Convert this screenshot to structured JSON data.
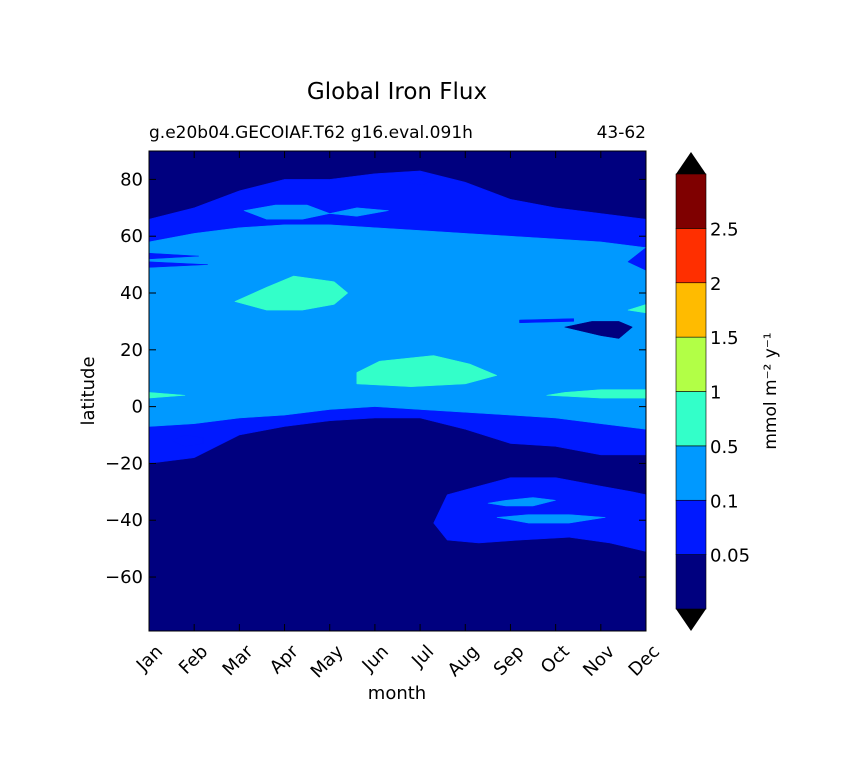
{
  "chart_data": {
    "type": "heatmap",
    "title": "Global Iron Flux",
    "subtitle_left": "g.e20b04.GECOIAF.T62 g16.eval.091h",
    "subtitle_right": "43-62",
    "xlabel": "month",
    "ylabel": "latitude",
    "x_ticks": [
      "Jan",
      "Feb",
      "Mar",
      "Apr",
      "May",
      "Jun",
      "Jul",
      "Aug",
      "Sep",
      "Oct",
      "Nov",
      "Dec"
    ],
    "xlim": [
      0,
      11
    ],
    "ylim": [
      -79,
      90
    ],
    "y_ticks": [
      80,
      60,
      40,
      20,
      0,
      -20,
      -40,
      -60
    ],
    "y_tick_labels": [
      "80",
      "60",
      "40",
      "20",
      "0",
      "−20",
      "−40",
      "−60"
    ],
    "colorbar": {
      "label": "mmol m⁻² y⁻¹",
      "levels": [
        0.05,
        0.1,
        0.5,
        1,
        1.5,
        2,
        2.5
      ],
      "level_labels": [
        "0.05",
        "0.1",
        "0.5",
        "1",
        "1.5",
        "2",
        "2.5"
      ],
      "colors": [
        "#00007f",
        "#0019ff",
        "#0099ff",
        "#33ffc9",
        "#b2ff46",
        "#ffbb00",
        "#ff2f00",
        "#7f0000"
      ],
      "extend": "both",
      "extend_colors": [
        "#000000",
        "#000000"
      ]
    },
    "regions": [
      {
        "level": "0.05-0.1",
        "color": "#0019ff",
        "boundary": [
          [
            0,
            -20
          ],
          [
            1,
            -18
          ],
          [
            2,
            -10
          ],
          [
            3,
            -7
          ],
          [
            4,
            -5
          ],
          [
            5,
            -4
          ],
          [
            6,
            -4
          ],
          [
            7,
            -8
          ],
          [
            8,
            -13
          ],
          [
            9,
            -14
          ],
          [
            10,
            -17
          ],
          [
            11,
            -17
          ],
          [
            11,
            66
          ],
          [
            10,
            68
          ],
          [
            9,
            70
          ],
          [
            8,
            73
          ],
          [
            7,
            79
          ],
          [
            6,
            83
          ],
          [
            5,
            82
          ],
          [
            4,
            80
          ],
          [
            3,
            80
          ],
          [
            2,
            76
          ],
          [
            1,
            70
          ],
          [
            0,
            66
          ]
        ]
      },
      {
        "level": "0.1-0.5",
        "color": "#0099ff",
        "boundary": [
          [
            0,
            -7
          ],
          [
            1,
            -6
          ],
          [
            2,
            -4
          ],
          [
            3,
            -3
          ],
          [
            4,
            -1
          ],
          [
            5,
            0
          ],
          [
            6,
            -1
          ],
          [
            7,
            -2
          ],
          [
            8,
            -3
          ],
          [
            9,
            -4
          ],
          [
            10,
            -6
          ],
          [
            11,
            -8
          ],
          [
            11,
            56
          ],
          [
            10,
            58
          ],
          [
            9,
            59
          ],
          [
            8,
            60
          ],
          [
            7,
            61
          ],
          [
            6,
            62
          ],
          [
            5,
            63
          ],
          [
            4,
            64
          ],
          [
            3,
            64
          ],
          [
            2,
            63
          ],
          [
            1,
            61
          ],
          [
            0,
            58
          ]
        ]
      },
      {
        "level": "0.5-1",
        "color": "#33ffc9",
        "label": "Mar-May 40N",
        "boundary": [
          [
            1.9,
            37
          ],
          [
            2.6,
            34
          ],
          [
            3.4,
            34
          ],
          [
            4.1,
            36
          ],
          [
            4.4,
            40
          ],
          [
            4.1,
            44
          ],
          [
            3.2,
            46
          ],
          [
            2.6,
            42
          ]
        ]
      },
      {
        "level": "0.5-1",
        "color": "#33ffc9",
        "label": "Jun-Aug equatorial",
        "boundary": [
          [
            4.6,
            8
          ],
          [
            5.8,
            7
          ],
          [
            7.0,
            8
          ],
          [
            7.7,
            11
          ],
          [
            7.1,
            15
          ],
          [
            6.3,
            18
          ],
          [
            5.1,
            16
          ],
          [
            4.6,
            12
          ]
        ]
      },
      {
        "level": "0.5-1",
        "color": "#33ffc9",
        "label": "Oct-Dec 5N",
        "boundary": [
          [
            8.8,
            4
          ],
          [
            10.0,
            3
          ],
          [
            11,
            3
          ],
          [
            11,
            6
          ],
          [
            10.0,
            6
          ],
          [
            9.2,
            5
          ]
        ]
      },
      {
        "level": "0.5-1",
        "color": "#33ffc9",
        "label": "Jan 4N",
        "boundary": [
          [
            0,
            3
          ],
          [
            0.8,
            4
          ],
          [
            0,
            5
          ]
        ]
      },
      {
        "level": "0.1-0.5",
        "color": "#0099ff",
        "label": "Apr-May 70N",
        "boundary": [
          [
            2.1,
            69
          ],
          [
            2.8,
            71
          ],
          [
            3.5,
            71
          ],
          [
            4.0,
            68
          ],
          [
            3.4,
            66
          ],
          [
            2.6,
            66
          ]
        ]
      },
      {
        "level": "0.1-0.5",
        "color": "#0099ff",
        "label": "Jun 69N",
        "boundary": [
          [
            4.0,
            68
          ],
          [
            4.6,
            70
          ],
          [
            5.3,
            69
          ],
          [
            4.6,
            67
          ]
        ]
      },
      {
        "level": "0.05-0.1",
        "color": "#0019ff",
        "label": "Sep-Dec -40 band",
        "boundary": [
          [
            6.3,
            -41
          ],
          [
            6.6,
            -31
          ],
          [
            7.3,
            -28
          ],
          [
            8.0,
            -25
          ],
          [
            9.0,
            -25
          ],
          [
            10.0,
            -28
          ],
          [
            10.7,
            -30
          ],
          [
            11,
            -31
          ],
          [
            11,
            -51
          ],
          [
            10.2,
            -48
          ],
          [
            9.3,
            -46
          ],
          [
            8.2,
            -47
          ],
          [
            7.3,
            -48
          ],
          [
            6.6,
            -47
          ]
        ]
      },
      {
        "level": "0.1-0.5",
        "color": "#0099ff",
        "label": "Sep-Oct -35 patch",
        "boundary": [
          [
            7.5,
            -34
          ],
          [
            7.9,
            -33
          ],
          [
            8.5,
            -32
          ],
          [
            9.0,
            -33
          ],
          [
            8.5,
            -35
          ],
          [
            7.9,
            -35
          ]
        ]
      },
      {
        "level": "0.1-0.5",
        "color": "#0099ff",
        "label": "Sep-Nov -39 patch",
        "boundary": [
          [
            7.7,
            -39
          ],
          [
            8.4,
            -38
          ],
          [
            9.3,
            -38
          ],
          [
            10.1,
            -39
          ],
          [
            9.3,
            -41
          ],
          [
            8.4,
            -41
          ]
        ]
      },
      {
        "level": "0.05-0.1",
        "color": "#0019ff",
        "label": "Jan-Feb -12 patch",
        "boundary": [
          [
            0.5,
            -12
          ],
          [
            0.8,
            -10
          ],
          [
            1.2,
            -11
          ],
          [
            1.2,
            -13
          ],
          [
            0.8,
            -14
          ]
        ]
      },
      {
        "level": "<0.05",
        "color": "#00007f",
        "label": "Oct-Nov 27N",
        "boundary": [
          [
            9.2,
            28
          ],
          [
            9.8,
            30
          ],
          [
            10.4,
            30
          ],
          [
            10.7,
            28
          ],
          [
            10.4,
            24
          ],
          [
            10.0,
            25
          ]
        ]
      },
      {
        "level": "0.05-0.1",
        "color": "#0019ff",
        "label": "Jul 81N",
        "boundary": [
          [
            5.75,
            79
          ],
          [
            6.05,
            82
          ],
          [
            6.35,
            80
          ],
          [
            6.05,
            78
          ]
        ]
      },
      {
        "level": "0.05-0.1",
        "color": "#0019ff",
        "label": "Jan 52N streaks",
        "boundary": [
          [
            0,
            49
          ],
          [
            1.3,
            50
          ],
          [
            0,
            51
          ]
        ]
      },
      {
        "level": "0.05-0.1",
        "color": "#0019ff",
        "label": "Jan 54N streaks",
        "boundary": [
          [
            0,
            52
          ],
          [
            1.1,
            53
          ],
          [
            0,
            54
          ]
        ]
      },
      {
        "level": "0.05-0.1",
        "color": "#0019ff",
        "label": "Dec 52N",
        "boundary": [
          [
            11,
            48
          ],
          [
            10.6,
            51
          ],
          [
            11,
            56
          ]
        ]
      },
      {
        "level": "0.5-1",
        "color": "#33ffc9",
        "label": "Dec 34N",
        "boundary": [
          [
            10.6,
            34
          ],
          [
            11,
            33
          ],
          [
            11,
            36
          ]
        ]
      },
      {
        "level": "0.05-0.1",
        "color": "#0019ff",
        "label": "Oct 30N streak",
        "boundary": [
          [
            8.2,
            29.5
          ],
          [
            9.4,
            30
          ],
          [
            9.4,
            31
          ],
          [
            8.2,
            30.5
          ]
        ]
      }
    ]
  }
}
